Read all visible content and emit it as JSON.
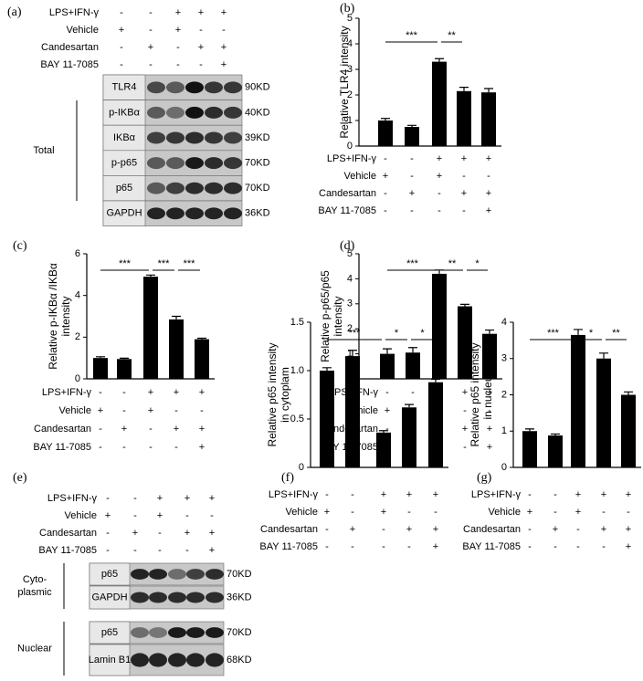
{
  "treatments": [
    {
      "name": "LPS+IFN-γ",
      "signs": [
        "-",
        "-",
        "+",
        "+",
        "+"
      ]
    },
    {
      "name": "Vehicle",
      "signs": [
        "+",
        "-",
        "+",
        "-",
        "-"
      ]
    },
    {
      "name": "Candesartan",
      "signs": [
        "-",
        "+",
        "-",
        "+",
        "+"
      ]
    },
    {
      "name": "BAY 11-7085",
      "signs": [
        "-",
        "-",
        "-",
        "-",
        "+"
      ]
    }
  ],
  "blot_a": {
    "label": "(a)",
    "group": "Total",
    "proteins": [
      {
        "name": "TLR4",
        "size": "90KD"
      },
      {
        "name": "p-IKBα",
        "size": "40KD"
      },
      {
        "name": "IKBα",
        "size": "39KD"
      },
      {
        "name": "p-p65",
        "size": "70KD"
      },
      {
        "name": "p65",
        "size": "70KD"
      },
      {
        "name": "GAPDH",
        "size": "36KD"
      }
    ]
  },
  "blot_e": {
    "label": "(e)",
    "groups": [
      {
        "name": [
          "Cyto-",
          "plasmic"
        ],
        "proteins": [
          {
            "name": "p65",
            "size": "70KD"
          },
          {
            "name": "GAPDH",
            "size": "36KD"
          }
        ]
      },
      {
        "name": [
          "Nuclear"
        ],
        "proteins": [
          {
            "name": "p65",
            "size": "70KD"
          },
          {
            "name": "Lamin B1",
            "size": "68KD"
          }
        ]
      }
    ]
  },
  "chart_data": [
    {
      "type": "bar",
      "label": "(b)",
      "ylabel": [
        "Relative TLR4 intensity"
      ],
      "values": [
        1.0,
        0.75,
        3.3,
        2.15,
        2.1
      ],
      "errors": [
        0.08,
        0.06,
        0.12,
        0.15,
        0.15
      ],
      "color": "#000000",
      "ylim": [
        0,
        5
      ],
      "yticks": [
        0,
        1,
        2,
        3,
        4,
        5
      ],
      "significance": [
        {
          "text": "***",
          "from": 0,
          "to": 2
        },
        {
          "text": "**",
          "from": 2,
          "to": 3
        }
      ]
    },
    {
      "type": "bar",
      "label": "(c)",
      "ylabel": [
        "Relative p-IKBα /IKBα",
        "intensity"
      ],
      "values": [
        1.0,
        0.95,
        4.9,
        2.85,
        1.9
      ],
      "errors": [
        0.06,
        0.04,
        0.08,
        0.15,
        0.05
      ],
      "color": "#000000",
      "ylim": [
        0,
        6
      ],
      "yticks": [
        0,
        2,
        4,
        6
      ],
      "significance": [
        {
          "text": "***",
          "from": 0,
          "to": 2
        },
        {
          "text": "***",
          "from": 2,
          "to": 3
        },
        {
          "text": "***",
          "from": 3,
          "to": 4
        }
      ]
    },
    {
      "type": "bar",
      "label": "(d)",
      "ylabel": [
        "Relative p-p65/p65",
        "intensity"
      ],
      "values": [
        1.0,
        1.05,
        4.2,
        2.9,
        1.8
      ],
      "errors": [
        0.2,
        0.2,
        0.15,
        0.08,
        0.15
      ],
      "color": "#000000",
      "ylim": [
        0,
        5
      ],
      "yticks": [
        0,
        1,
        2,
        3,
        4,
        5
      ],
      "significance": [
        {
          "text": "***",
          "from": 0,
          "to": 2
        },
        {
          "text": "**",
          "from": 2,
          "to": 3
        },
        {
          "text": "*",
          "from": 3,
          "to": 4
        }
      ]
    },
    {
      "type": "bar",
      "label": "(f)",
      "ylabel": [
        "Relative p65 intensity",
        "in cytoplam"
      ],
      "values": [
        1.0,
        1.15,
        0.36,
        0.62,
        0.88
      ],
      "errors": [
        0.03,
        0.06,
        0.02,
        0.03,
        0.03
      ],
      "color": "#000000",
      "ylim": [
        0,
        1.5
      ],
      "yticks": [
        0,
        {
          "value": 0.5,
          "label": "0.5"
        },
        {
          "value": 1,
          "label": "1.0"
        },
        {
          "value": 1.5,
          "label": "1.5"
        }
      ],
      "significance": [
        {
          "text": "***",
          "from": 0,
          "to": 2
        },
        {
          "text": "*",
          "from": 2,
          "to": 3
        },
        {
          "text": "*",
          "from": 3,
          "to": 4
        }
      ]
    },
    {
      "type": "bar",
      "label": "(g)",
      "ylabel": [
        "Relative p65 intensity",
        "in nucleus"
      ],
      "values": [
        1.0,
        0.88,
        3.65,
        3.0,
        2.0
      ],
      "errors": [
        0.06,
        0.04,
        0.15,
        0.15,
        0.08
      ],
      "color": "#000000",
      "ylim": [
        0,
        4
      ],
      "yticks": [
        0,
        1,
        2,
        3,
        4
      ],
      "significance": [
        {
          "text": "***",
          "from": 0,
          "to": 2
        },
        {
          "text": "*",
          "from": 2,
          "to": 3
        },
        {
          "text": "**",
          "from": 3,
          "to": 4
        }
      ]
    }
  ]
}
